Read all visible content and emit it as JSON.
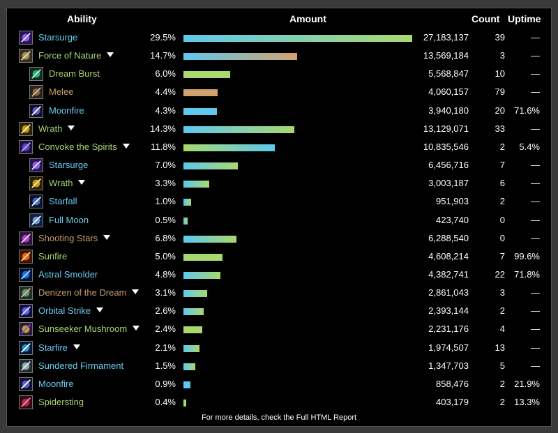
{
  "header": {
    "ability": "Ability",
    "amount": "Amount",
    "count": "Count",
    "uptime": "Uptime"
  },
  "colors": {
    "blue": "#5ec8ef",
    "green": "#a9d86e",
    "tan": "#d2a26e",
    "text_blue": "#69ccf0",
    "text_green": "#abd473",
    "text_tan": "#c79c6e"
  },
  "rows": [
    {
      "name": "Starsurge",
      "pct": "29.5%",
      "share": 29.5,
      "amount": "27,183,137",
      "count": "39",
      "uptime": "—",
      "indent": 0,
      "expand": false,
      "text_color": "blue",
      "bar": [
        "#5ec8ef",
        "#a9d86e"
      ],
      "icon": "starsurge-icon"
    },
    {
      "name": "Force of Nature",
      "pct": "14.7%",
      "share": 14.7,
      "amount": "13,569,184",
      "count": "3",
      "uptime": "—",
      "indent": 0,
      "expand": true,
      "text_color": "green",
      "bar": [
        "#5ec8ef",
        "#d2a26e"
      ],
      "icon": "force-of-nature-icon"
    },
    {
      "name": "Dream Burst",
      "pct": "6.0%",
      "share": 6.0,
      "amount": "5,568,847",
      "count": "10",
      "uptime": "—",
      "indent": 1,
      "expand": false,
      "text_color": "green",
      "bar": [
        "#a9d86e",
        "#a9d86e"
      ],
      "icon": "dream-burst-icon"
    },
    {
      "name": "Melee",
      "pct": "4.4%",
      "share": 4.4,
      "amount": "4,060,157",
      "count": "79",
      "uptime": "—",
      "indent": 1,
      "expand": false,
      "text_color": "tan",
      "bar": [
        "#d2a26e",
        "#d2a26e"
      ],
      "icon": "melee-icon"
    },
    {
      "name": "Moonfire",
      "pct": "4.3%",
      "share": 4.3,
      "amount": "3,940,180",
      "count": "20",
      "uptime": "71.6%",
      "indent": 1,
      "expand": false,
      "text_color": "blue",
      "bar": [
        "#5ec8ef",
        "#5ec8ef"
      ],
      "icon": "moonfire-icon"
    },
    {
      "name": "Wrath",
      "pct": "14.3%",
      "share": 14.3,
      "amount": "13,129,071",
      "count": "33",
      "uptime": "—",
      "indent": 0,
      "expand": true,
      "text_color": "green",
      "bar": [
        "#5ec8ef",
        "#a9d86e"
      ],
      "icon": "wrath-icon"
    },
    {
      "name": "Convoke the Spirits",
      "pct": "11.8%",
      "share": 11.8,
      "amount": "10,835,546",
      "count": "2",
      "uptime": "5.4%",
      "indent": 0,
      "expand": true,
      "text_color": "green",
      "bar": [
        "#a9d86e",
        "#5ec8ef"
      ],
      "icon": "convoke-the-spirits-icon"
    },
    {
      "name": "Starsurge",
      "pct": "7.0%",
      "share": 7.0,
      "amount": "6,456,716",
      "count": "7",
      "uptime": "—",
      "indent": 1,
      "expand": false,
      "text_color": "blue",
      "bar": [
        "#5ec8ef",
        "#a9d86e"
      ],
      "icon": "starsurge-icon"
    },
    {
      "name": "Wrath",
      "pct": "3.3%",
      "share": 3.3,
      "amount": "3,003,187",
      "count": "6",
      "uptime": "—",
      "indent": 1,
      "expand": true,
      "text_color": "green",
      "bar": [
        "#5ec8ef",
        "#a9d86e"
      ],
      "icon": "wrath-icon"
    },
    {
      "name": "Starfall",
      "pct": "1.0%",
      "share": 1.0,
      "amount": "951,903",
      "count": "2",
      "uptime": "—",
      "indent": 1,
      "expand": false,
      "text_color": "blue",
      "bar": [
        "#5ec8ef",
        "#a9d86e"
      ],
      "icon": "starfall-icon"
    },
    {
      "name": "Full Moon",
      "pct": "0.5%",
      "share": 0.5,
      "amount": "423,740",
      "count": "0",
      "uptime": "—",
      "indent": 1,
      "expand": false,
      "text_color": "blue",
      "bar": [
        "#5ec8ef",
        "#a9d86e"
      ],
      "icon": "full-moon-icon"
    },
    {
      "name": "Shooting Stars",
      "pct": "6.8%",
      "share": 6.8,
      "amount": "6,288,540",
      "count": "0",
      "uptime": "—",
      "indent": 0,
      "expand": true,
      "text_color": "tan",
      "bar": [
        "#5ec8ef",
        "#a9d86e"
      ],
      "icon": "shooting-stars-icon"
    },
    {
      "name": "Sunfire",
      "pct": "5.0%",
      "share": 5.0,
      "amount": "4,608,214",
      "count": "7",
      "uptime": "99.6%",
      "indent": 0,
      "expand": false,
      "text_color": "green",
      "bar": [
        "#a9d86e",
        "#a9d86e"
      ],
      "icon": "sunfire-icon"
    },
    {
      "name": "Astral Smolder",
      "pct": "4.8%",
      "share": 4.8,
      "amount": "4,382,741",
      "count": "22",
      "uptime": "71.8%",
      "indent": 0,
      "expand": false,
      "text_color": "blue",
      "bar": [
        "#5ec8ef",
        "#a9d86e"
      ],
      "icon": "astral-smolder-icon"
    },
    {
      "name": "Denizen of the Dream",
      "pct": "3.1%",
      "share": 3.1,
      "amount": "2,861,043",
      "count": "3",
      "uptime": "—",
      "indent": 0,
      "expand": true,
      "text_color": "tan",
      "bar": [
        "#5ec8ef",
        "#a9d86e"
      ],
      "icon": "denizen-of-the-dream-icon"
    },
    {
      "name": "Orbital Strike",
      "pct": "2.6%",
      "share": 2.6,
      "amount": "2,393,144",
      "count": "2",
      "uptime": "—",
      "indent": 0,
      "expand": true,
      "text_color": "blue",
      "bar": [
        "#5ec8ef",
        "#a9d86e"
      ],
      "icon": "orbital-strike-icon"
    },
    {
      "name": "Sunseeker Mushroom",
      "pct": "2.4%",
      "share": 2.4,
      "amount": "2,231,176",
      "count": "4",
      "uptime": "—",
      "indent": 0,
      "expand": true,
      "text_color": "green",
      "bar": [
        "#a9d86e",
        "#a9d86e"
      ],
      "icon": "sunseeker-mushroom-icon"
    },
    {
      "name": "Starfire",
      "pct": "2.1%",
      "share": 2.1,
      "amount": "1,974,507",
      "count": "13",
      "uptime": "—",
      "indent": 0,
      "expand": true,
      "text_color": "blue",
      "bar": [
        "#5ec8ef",
        "#a9d86e"
      ],
      "icon": "starfire-icon"
    },
    {
      "name": "Sundered Firmament",
      "pct": "1.5%",
      "share": 1.5,
      "amount": "1,347,703",
      "count": "5",
      "uptime": "—",
      "indent": 0,
      "expand": false,
      "text_color": "blue",
      "bar": [
        "#5ec8ef",
        "#a9d86e"
      ],
      "icon": "sundered-firmament-icon"
    },
    {
      "name": "Moonfire",
      "pct": "0.9%",
      "share": 0.9,
      "amount": "858,476",
      "count": "2",
      "uptime": "21.9%",
      "indent": 0,
      "expand": false,
      "text_color": "blue",
      "bar": [
        "#5ec8ef",
        "#5ec8ef"
      ],
      "icon": "moonfire-icon"
    },
    {
      "name": "Spidersting",
      "pct": "0.4%",
      "share": 0.4,
      "amount": "403,179",
      "count": "2",
      "uptime": "13.3%",
      "indent": 0,
      "expand": false,
      "text_color": "green",
      "bar": [
        "#a9d86e",
        "#a9d86e"
      ],
      "icon": "spidersting-icon"
    }
  ],
  "footer": "For more details, check the Full HTML Report"
}
